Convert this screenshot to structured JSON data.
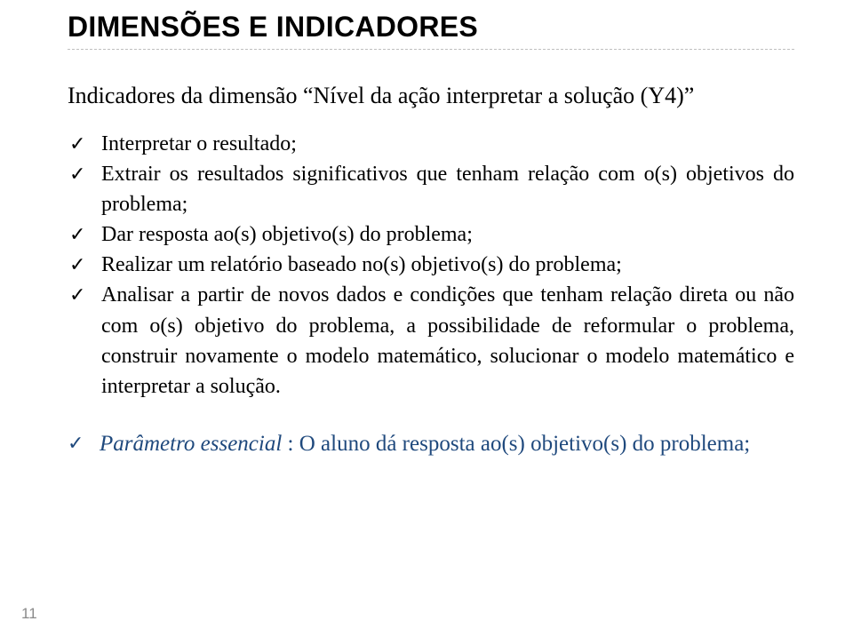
{
  "title": "DIMENSÕES E INDICADORES",
  "subtitle_prefix": "Indicadores da dimensão ",
  "subtitle_quoted": "Nível da ação interpretar a solução (Y4)",
  "bullets": [
    "Interpretar o resultado;",
    "Extrair os resultados significativos que tenham relação com o(s) objetivos do problema;",
    "Dar resposta ao(s) objetivo(s) do problema;",
    "Realizar um relatório baseado no(s) objetivo(s) do problema;",
    "Analisar a partir de novos dados e condições que tenham relação direta ou não com o(s) objetivo do problema, a possibilidade de reformular o problema, construir novamente o modelo matemático, solucionar o modelo matemático e interpretar a solução."
  ],
  "param_label": "Parâmetro essencial",
  "param_text": " : O aluno dá resposta ao(s) objetivo(s) do problema;",
  "check_glyph": "✓",
  "page_number": "11",
  "colors": {
    "text": "#000000",
    "accent": "#1f497d",
    "rule": "#bfbfbf",
    "pagenum": "#8a8a8a",
    "background": "#ffffff"
  }
}
